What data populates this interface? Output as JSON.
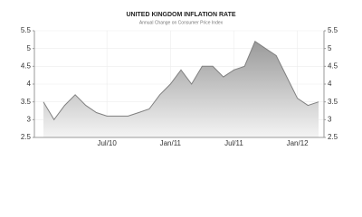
{
  "chart_data": {
    "type": "area",
    "title": "UNITED KINGDOM INFLATION RATE",
    "subtitle": "Annual Change on Consumer Price Index",
    "categories": [
      null,
      null,
      null,
      null,
      null,
      null,
      "Jul/10",
      null,
      null,
      null,
      null,
      null,
      "Jan/11",
      null,
      null,
      null,
      null,
      null,
      "Jul/11",
      null,
      null,
      null,
      null,
      null,
      "Jan/12",
      null,
      null
    ],
    "values": [
      3.5,
      3.0,
      3.4,
      3.7,
      3.4,
      3.2,
      3.1,
      3.1,
      3.1,
      3.2,
      3.3,
      3.7,
      4.0,
      4.4,
      4.0,
      4.5,
      4.5,
      4.2,
      4.4,
      4.5,
      5.2,
      5.0,
      4.8,
      4.2,
      3.6,
      3.4,
      3.5
    ],
    "color": "#808080",
    "ylim": [
      2.5,
      5.5
    ],
    "yticks": [
      2.5,
      3,
      3.5,
      4,
      4.5,
      5,
      5.5
    ],
    "right_axis": true,
    "grid": true
  }
}
